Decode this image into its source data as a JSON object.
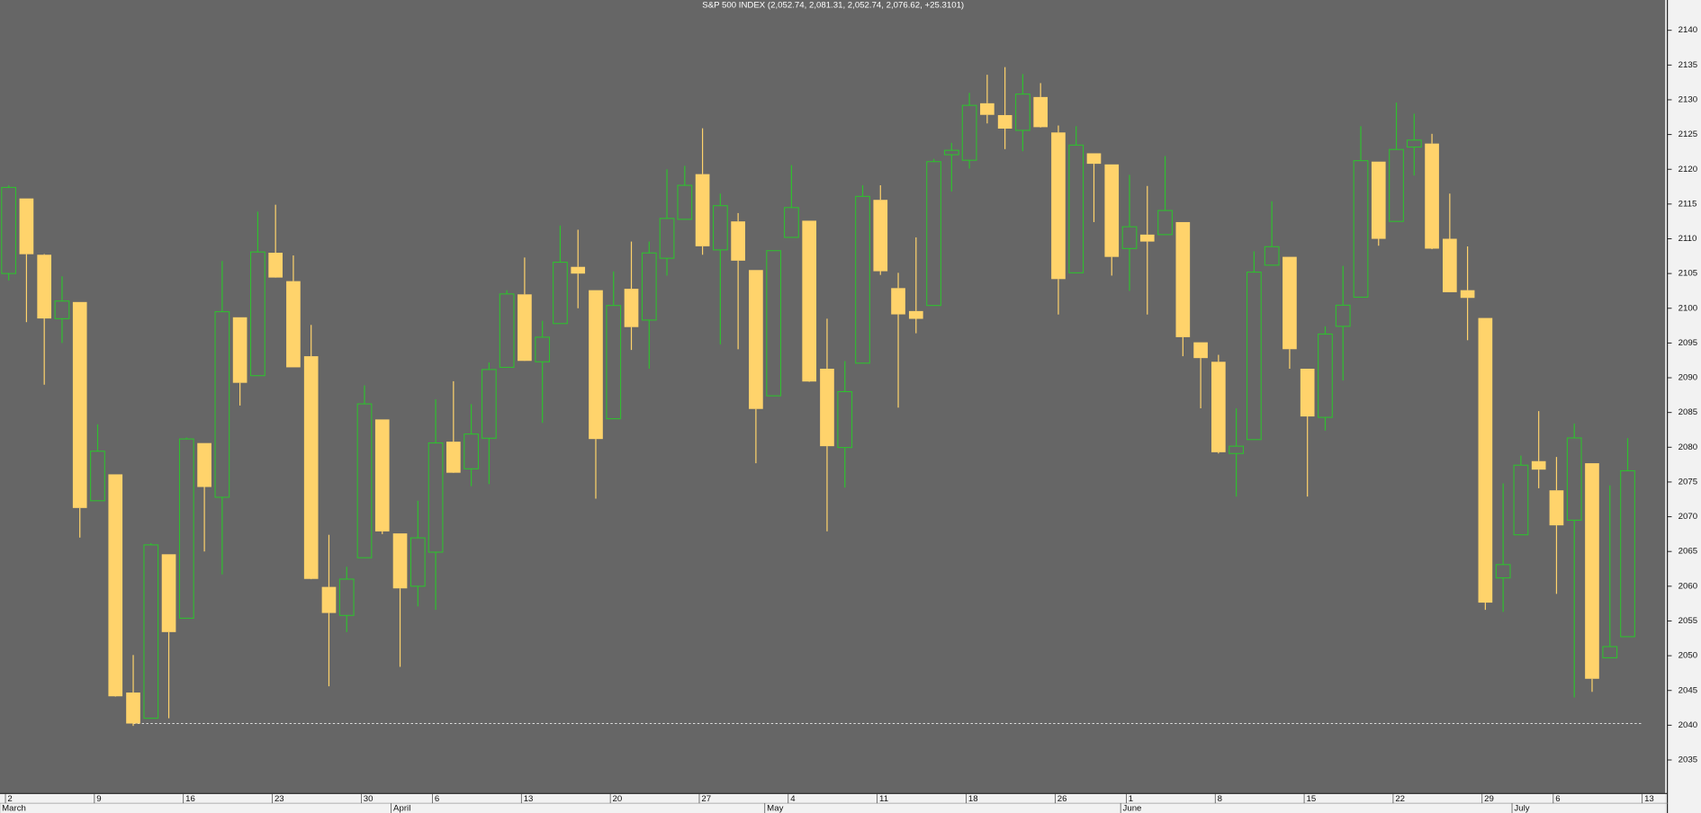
{
  "chart_data": {
    "type": "candlestick",
    "title": "S&P 500 INDEX (2,052.74, 2,081.31, 2,052.74, 2,076.62, +25.3101)",
    "categories": [
      "2",
      null,
      null,
      null,
      null,
      "9",
      null,
      null,
      null,
      null,
      "16",
      null,
      null,
      null,
      null,
      "23",
      null,
      null,
      null,
      null,
      "30",
      null,
      null,
      null,
      "6",
      null,
      null,
      null,
      null,
      "13",
      null,
      null,
      null,
      null,
      "20",
      null,
      null,
      null,
      null,
      "27",
      null,
      null,
      null,
      null,
      "4",
      null,
      null,
      null,
      null,
      "11",
      null,
      null,
      null,
      null,
      "18",
      null,
      null,
      null,
      null,
      "26",
      null,
      null,
      null,
      "1",
      null,
      null,
      null,
      null,
      "8",
      null,
      null,
      null,
      null,
      "15",
      null,
      null,
      null,
      null,
      "22",
      null,
      null,
      null,
      null,
      "29",
      null,
      null,
      null,
      "6",
      null,
      null,
      null,
      null,
      "13",
      null
    ],
    "months": [
      "March",
      null,
      null,
      null,
      null,
      null,
      null,
      null,
      null,
      null,
      null,
      null,
      null,
      null,
      null,
      null,
      null,
      null,
      null,
      null,
      null,
      null,
      "April",
      null,
      null,
      null,
      null,
      null,
      null,
      null,
      null,
      null,
      null,
      null,
      null,
      null,
      null,
      null,
      null,
      null,
      null,
      null,
      null,
      "May",
      null,
      null,
      null,
      null,
      null,
      null,
      null,
      null,
      null,
      null,
      null,
      null,
      null,
      null,
      null,
      null,
      null,
      null,
      null,
      "June",
      null,
      null,
      null,
      null,
      null,
      null,
      null,
      null,
      null,
      null,
      null,
      null,
      null,
      null,
      null,
      null,
      null,
      null,
      null,
      null,
      null,
      "July",
      null,
      null,
      null,
      null,
      null,
      null,
      null,
      null
    ],
    "open": [
      2105,
      2115.8,
      2107.7,
      2098.5,
      2100.9,
      2072.3,
      2076.1,
      2044.7,
      2041,
      2064.6,
      2055.4,
      2080.6,
      2072.8,
      2098.7,
      2090.3,
      2107.99,
      2103.9,
      2093.1,
      2059.9,
      2055.8,
      2064.1,
      2084,
      2067.6,
      2060,
      2064.9,
      2080.8,
      2076.9,
      2081.3,
      2091.5,
      2102,
      2092.3,
      2097.8,
      2105.96,
      2102.6,
      2084.1,
      2102.8,
      2098.3,
      2107.2,
      2112.8,
      2119.3,
      2108.4,
      2112.5,
      2105.5,
      2087.4,
      2110.2,
      2112.6,
      2091.3,
      2079.96,
      2092.1,
      2115.6,
      2102.9,
      2099.6,
      2100.4,
      2122.1,
      2121.3,
      2129.5,
      2127.8,
      2125.6,
      2130.4,
      2125.3,
      2105.1,
      2122.3,
      2120.7,
      2108.6,
      2110.6,
      2110.6,
      2112.4,
      2095.1,
      2092.3,
      2079.1,
      2081.1,
      2106.2,
      2107.4,
      2091.3,
      2084.3,
      2097.4,
      2101.6,
      2121.1,
      2112.5,
      2123.2,
      2123.7,
      2110,
      2102.6,
      2098.6,
      2061.2,
      2067.4,
      2078,
      2073.8,
      2069.5,
      2077.7,
      2049.7,
      2052.74,
      null,
      null
    ],
    "high": [
      2117.7,
      2115.8,
      2107.8,
      2104.6,
      2100.9,
      2083.3,
      2076.1,
      2050.1,
      2066.2,
      2064.6,
      2081.4,
      2080.6,
      2106.8,
      2098.7,
      2113.9,
      2114.9,
      2107.6,
      2097.6,
      2067.4,
      2062.8,
      2088.9,
      2084,
      2067.6,
      2072.3,
      2086.9,
      2089.5,
      2086.2,
      2092.2,
      2102.6,
      2107.3,
      2098.2,
      2111.9,
      2111.3,
      2102.6,
      2105.3,
      2109.6,
      2109.6,
      2120,
      2120.5,
      2125.9,
      2116.5,
      2113.7,
      2105.5,
      2108.3,
      2120.6,
      2112.6,
      2098.5,
      2092.4,
      2117.7,
      2117.7,
      2105.1,
      2110.2,
      2121.5,
      2123.8,
      2131,
      2133.6,
      2134.7,
      2133.7,
      2132.4,
      2126.3,
      2126.2,
      2122.3,
      2120.7,
      2119.2,
      2117.6,
      2121.9,
      2112.4,
      2095.1,
      2093.3,
      2085.6,
      2108.2,
      2115.4,
      2107.4,
      2091.3,
      2097.4,
      2106.1,
      2126.2,
      2121.1,
      2129.6,
      2128,
      2125.1,
      2116.5,
      2108.9,
      2098.6,
      2074.8,
      2078.8,
      2085.2,
      2078.6,
      2083.4,
      2077.7,
      2074.5,
      2081.31,
      null,
      null
    ],
    "low": [
      2104,
      2098,
      2089,
      2095,
      2067,
      2072.3,
      2044.1,
      2039.9,
      2041,
      2041,
      2055.4,
      2065,
      2061.7,
      2086,
      2090.3,
      2104.4,
      2091.5,
      2061,
      2045.6,
      2053.4,
      2064.1,
      2067.5,
      2048.4,
      2057.1,
      2056.6,
      2076.3,
      2074.4,
      2074.7,
      2091.5,
      2092.4,
      2083.5,
      2097.8,
      2100,
      2072.6,
      2084.1,
      2094,
      2091.3,
      2104.7,
      2112.8,
      2107.7,
      2094.8,
      2094.1,
      2077.7,
      2087.4,
      2110.2,
      2089.4,
      2067.9,
      2074.2,
      2092.1,
      2104.8,
      2085.7,
      2096.4,
      2100.4,
      2116.8,
      2120.1,
      2126.6,
      2122.9,
      2122.6,
      2126,
      2099.1,
      2105.1,
      2112.4,
      2104.7,
      2102.5,
      2099.1,
      2110.6,
      2093.1,
      2085.6,
      2079.1,
      2072.9,
      2081.1,
      2106.2,
      2091.3,
      2072.9,
      2082.4,
      2089.6,
      2101.6,
      2109,
      2112.5,
      2119.1,
      2108.5,
      2102.3,
      2095.4,
      2056.6,
      2056.3,
      2067.4,
      2074.1,
      2058.9,
      2044,
      2044.8,
      2049.7,
      2052.74,
      null,
      null
    ],
    "close": [
      2117.39,
      2107.78,
      2098.53,
      2101.04,
      2071.26,
      2079.43,
      2044.16,
      2040.24,
      2065.95,
      2053.4,
      2081.19,
      2074.28,
      2099.5,
      2089.27,
      2108.1,
      2104.42,
      2091.5,
      2061.05,
      2056.15,
      2061.02,
      2086.24,
      2067.89,
      2059.69,
      2066.96,
      2080.62,
      2076.33,
      2081.9,
      2091.18,
      2102.06,
      2092.43,
      2095.84,
      2106.63,
      2104.99,
      2081.18,
      2100.4,
      2097.29,
      2107.96,
      2112.93,
      2117.69,
      2108.92,
      2114.76,
      2106.85,
      2085.51,
      2108.29,
      2114.49,
      2089.46,
      2080.15,
      2088,
      2116.1,
      2105.33,
      2099.12,
      2098.48,
      2121.1,
      2122.73,
      2129.2,
      2127.83,
      2125.85,
      2130.82,
      2126.06,
      2104.2,
      2123.48,
      2120.79,
      2107.39,
      2111.73,
      2109.6,
      2114.07,
      2095.84,
      2092.83,
      2079.28,
      2080.15,
      2105.2,
      2108.86,
      2094.11,
      2084.43,
      2096.29,
      2100.44,
      2121.24,
      2109.99,
      2122.85,
      2124.2,
      2108.58,
      2102.31,
      2101.49,
      2057.64,
      2063.11,
      2077.42,
      2076.78,
      2068.76,
      2081.34,
      2046.68,
      2051.31,
      2076.62,
      null,
      null
    ],
    "up_color": "#2fbf2f",
    "down_color": "#ffd36b",
    "reference_line": 2040.24,
    "ylim": [
      2030.17,
      2144.36
    ],
    "yticks": [
      2035,
      2040,
      2045,
      2050,
      2055,
      2060,
      2065,
      2070,
      2075,
      2080,
      2085,
      2090,
      2095,
      2100,
      2105,
      2110,
      2115,
      2120,
      2125,
      2130,
      2135,
      2140
    ]
  }
}
